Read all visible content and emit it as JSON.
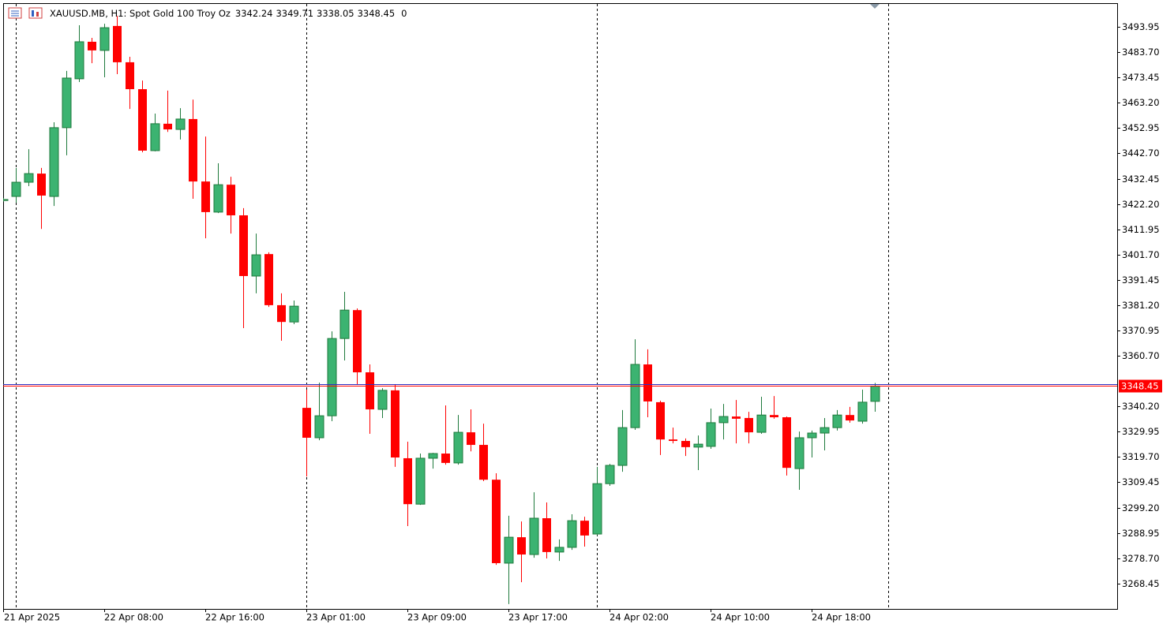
{
  "chart_data": {
    "type": "candlestick",
    "title": "XAUUSD.MB, H1:  Spot Gold 100 Troy Oz",
    "spread": 0,
    "x": [
      "21 Apr 2025",
      null,
      null,
      null,
      null,
      null,
      null,
      null,
      "22 Apr 08:00",
      null,
      null,
      null,
      null,
      null,
      null,
      null,
      "22 Apr 16:00",
      null,
      null,
      null,
      null,
      null,
      null,
      null,
      "23 Apr 01:00",
      null,
      null,
      null,
      null,
      null,
      null,
      null,
      "23 Apr 09:00",
      null,
      null,
      null,
      null,
      null,
      null,
      null,
      "23 Apr 17:00",
      null,
      null,
      null,
      null,
      null,
      null,
      null,
      "24 Apr 02:00",
      null,
      null,
      null,
      null,
      null,
      null,
      null,
      "24 Apr 10:00",
      null,
      null,
      null,
      null,
      null,
      null,
      null,
      "24 Apr 18:00",
      null,
      null,
      null,
      null,
      null
    ],
    "open": [
      3423.6,
      3425.25,
      3431.0,
      3434.5,
      3425.25,
      3453.1,
      3472.9,
      3487.9,
      3484.4,
      3494.3,
      3479.6,
      3468.7,
      3443.8,
      3454.7,
      3452.4,
      3456.6,
      3431.3,
      3418.9,
      3430.0,
      3417.6,
      3393.0,
      3401.9,
      3381.2,
      3374.4,
      3339.6,
      3327.5,
      3336.4,
      3367.7,
      3379.2,
      3354.0,
      3339.0,
      3346.7,
      3319.2,
      3300.6,
      3319.2,
      3321.1,
      3317.3,
      3329.7,
      3324.6,
      3310.5,
      3276.7,
      3287.2,
      3280.2,
      3294.9,
      3281.2,
      3283.1,
      3293.9,
      3288.5,
      3308.9,
      3316.3,
      3331.6,
      3357.2,
      3341.9,
      3326.8,
      3326.2,
      3323.7,
      3324.0,
      3333.6,
      3336.1,
      3335.5,
      3329.7,
      3336.7,
      3335.8,
      3315.0,
      3327.5,
      3329.4,
      3331.6,
      3336.7,
      3334.2,
      3342.24
    ],
    "high": [
      3424.6,
      3436.76,
      3444.4,
      3436.8,
      3455.3,
      3476.1,
      3494.6,
      3489.5,
      3495.2,
      3498.4,
      3481.8,
      3472.2,
      3458.8,
      3468.1,
      3461.0,
      3464.5,
      3449.5,
      3438.7,
      3433.2,
      3420.5,
      3410.2,
      3402.6,
      3386.0,
      3383.1,
      3347.0,
      3349.8,
      3370.6,
      3386.6,
      3379.9,
      3357.2,
      3347.6,
      3348.9,
      3325.9,
      3321.1,
      3321.4,
      3340.6,
      3336.7,
      3339.0,
      3333.2,
      3313.1,
      3295.9,
      3293.6,
      3305.4,
      3301.3,
      3286.3,
      3296.5,
      3295.5,
      3315.7,
      3316.9,
      3338.7,
      3367.4,
      3363.3,
      3342.5,
      3331.6,
      3327.2,
      3328.4,
      3339.3,
      3341.2,
      3342.8,
      3338.0,
      3344.1,
      3344.4,
      3336.1,
      3330.0,
      3330.4,
      3335.5,
      3338.7,
      3340.0,
      3347.0,
      3349.71
    ],
    "low": [
      3423.2,
      3422.7,
      3429.4,
      3412.1,
      3421.4,
      3441.9,
      3471.6,
      3479.2,
      3473.5,
      3474.8,
      3460.7,
      3443.1,
      3443.5,
      3451.4,
      3448.3,
      3424.3,
      3408.3,
      3418.5,
      3410.2,
      3371.9,
      3386.0,
      3380.5,
      3366.8,
      3373.5,
      3311.8,
      3326.5,
      3334.2,
      3358.8,
      3348.9,
      3329.1,
      3335.5,
      3315.7,
      3291.7,
      3300.3,
      3315.0,
      3316.6,
      3316.6,
      3322.0,
      3309.9,
      3276.0,
      3260.1,
      3269.0,
      3278.9,
      3278.6,
      3277.6,
      3282.1,
      3283.4,
      3287.9,
      3308.0,
      3313.7,
      3330.7,
      3335.8,
      3320.5,
      3325.2,
      3320.1,
      3314.4,
      3323.0,
      3326.8,
      3325.2,
      3325.2,
      3329.1,
      3335.2,
      3312.2,
      3306.4,
      3319.5,
      3322.4,
      3330.4,
      3333.6,
      3333.2,
      3338.05
    ],
    "close": [
      3424.0,
      3431.0,
      3434.5,
      3425.6,
      3453.1,
      3473.2,
      3487.9,
      3484.4,
      3493.6,
      3479.6,
      3468.7,
      3443.8,
      3454.7,
      3452.4,
      3456.6,
      3431.3,
      3418.9,
      3430.0,
      3417.6,
      3393.0,
      3401.6,
      3381.2,
      3374.4,
      3380.8,
      3327.5,
      3336.4,
      3367.7,
      3379.2,
      3354.0,
      3339.0,
      3346.7,
      3319.5,
      3300.6,
      3319.2,
      3321.1,
      3317.3,
      3329.7,
      3324.6,
      3310.5,
      3276.7,
      3287.2,
      3280.2,
      3294.9,
      3281.2,
      3283.1,
      3293.9,
      3287.9,
      3308.9,
      3316.3,
      3331.6,
      3357.2,
      3342.2,
      3326.8,
      3326.2,
      3323.7,
      3324.9,
      3333.6,
      3336.1,
      3335.2,
      3329.7,
      3336.7,
      3335.8,
      3315.3,
      3327.5,
      3329.4,
      3331.6,
      3336.7,
      3334.5,
      3341.9,
      3348.45
    ],
    "ask": 3349.1,
    "up_color": "#3cb371",
    "up_border": "#1e7a3c",
    "down_color": "#ff0000",
    "ask_color": "#3030c0",
    "ylim": [
      3258.16,
      3503.54
    ],
    "yticks": [
      3268.45,
      {
        "value": 3278.7,
        "label": "3278.70"
      },
      3288.95,
      {
        "value": 3299.2,
        "label": "3299.20"
      },
      3309.45,
      {
        "value": 3319.7,
        "label": "3319.70"
      },
      3329.95,
      {
        "value": 3340.2,
        "label": "3340.20"
      },
      {
        "value": 3360.7,
        "label": "3360.70"
      },
      3370.95,
      {
        "value": 3381.2,
        "label": "3381.20"
      },
      3391.45,
      {
        "value": 3401.7,
        "label": "3401.70"
      },
      3411.95,
      {
        "value": 3422.2,
        "label": "3422.20"
      },
      3432.45,
      {
        "value": 3442.7,
        "label": "3442.70"
      },
      3452.95,
      {
        "value": 3463.2,
        "label": "3463.20"
      },
      3473.45,
      {
        "value": 3483.7,
        "label": "3483.70"
      },
      3493.95
    ]
  }
}
